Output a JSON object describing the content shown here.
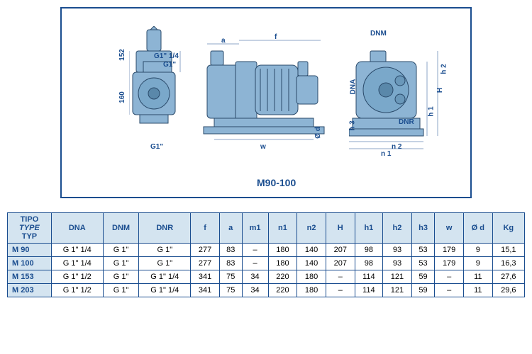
{
  "diagram": {
    "border_color": "#1a4d8f",
    "pump_fill": "#8db4d4",
    "pump_stroke": "#2a4a6a",
    "model_label": "M90-100",
    "labels": {
      "dim152": "152",
      "dim160": "160",
      "g1_14": "G1\" 1/4",
      "g1_a": "G1\"",
      "g1_b": "G1\"",
      "a": "a",
      "f": "f",
      "w": "w",
      "od": "Ø d",
      "dnm": "DNM",
      "dna": "DNA",
      "dnr": "DNR",
      "h3": "h 3",
      "h": "H",
      "h1": "h 1",
      "h2": "h 2",
      "n2": "n 2",
      "n1": "n 1"
    }
  },
  "table": {
    "header_bg": "#d4e4f0",
    "header_color": "#1a4d8f",
    "border_color": "#1a4d8f",
    "type_labels": [
      "TIPO",
      "TYPE",
      "TYP"
    ],
    "columns": [
      "DNA",
      "DNM",
      "DNR",
      "f",
      "a",
      "m1",
      "n1",
      "n2",
      "H",
      "h1",
      "h2",
      "h3",
      "w",
      "Ø d",
      "Kg"
    ],
    "rows": [
      {
        "type": "M 90",
        "cells": [
          "G 1\" 1/4",
          "G 1\"",
          "G 1\"",
          "277",
          "83",
          "–",
          "180",
          "140",
          "207",
          "98",
          "93",
          "53",
          "179",
          "9",
          "15,1"
        ]
      },
      {
        "type": "M 100",
        "cells": [
          "G 1\" 1/4",
          "G 1\"",
          "G 1\"",
          "277",
          "83",
          "–",
          "180",
          "140",
          "207",
          "98",
          "93",
          "53",
          "179",
          "9",
          "16,3"
        ]
      },
      {
        "type": "M 153",
        "cells": [
          "G 1\" 1/2",
          "G 1\"",
          "G 1\" 1/4",
          "341",
          "75",
          "34",
          "220",
          "180",
          "–",
          "114",
          "121",
          "59",
          "–",
          "11",
          "27,6"
        ]
      },
      {
        "type": "M 203",
        "cells": [
          "G 1\" 1/2",
          "G 1\"",
          "G 1\" 1/4",
          "341",
          "75",
          "34",
          "220",
          "180",
          "–",
          "114",
          "121",
          "59",
          "–",
          "11",
          "29,6"
        ]
      }
    ]
  }
}
